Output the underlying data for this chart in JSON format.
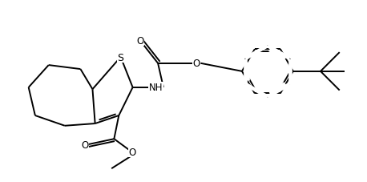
{
  "bg_color": "#ffffff",
  "line_color": "#000000",
  "lw": 1.4,
  "figsize": [
    4.58,
    2.28
  ],
  "dpi": 100,
  "xlim": [
    0,
    10
  ],
  "ylim": [
    0,
    5
  ]
}
